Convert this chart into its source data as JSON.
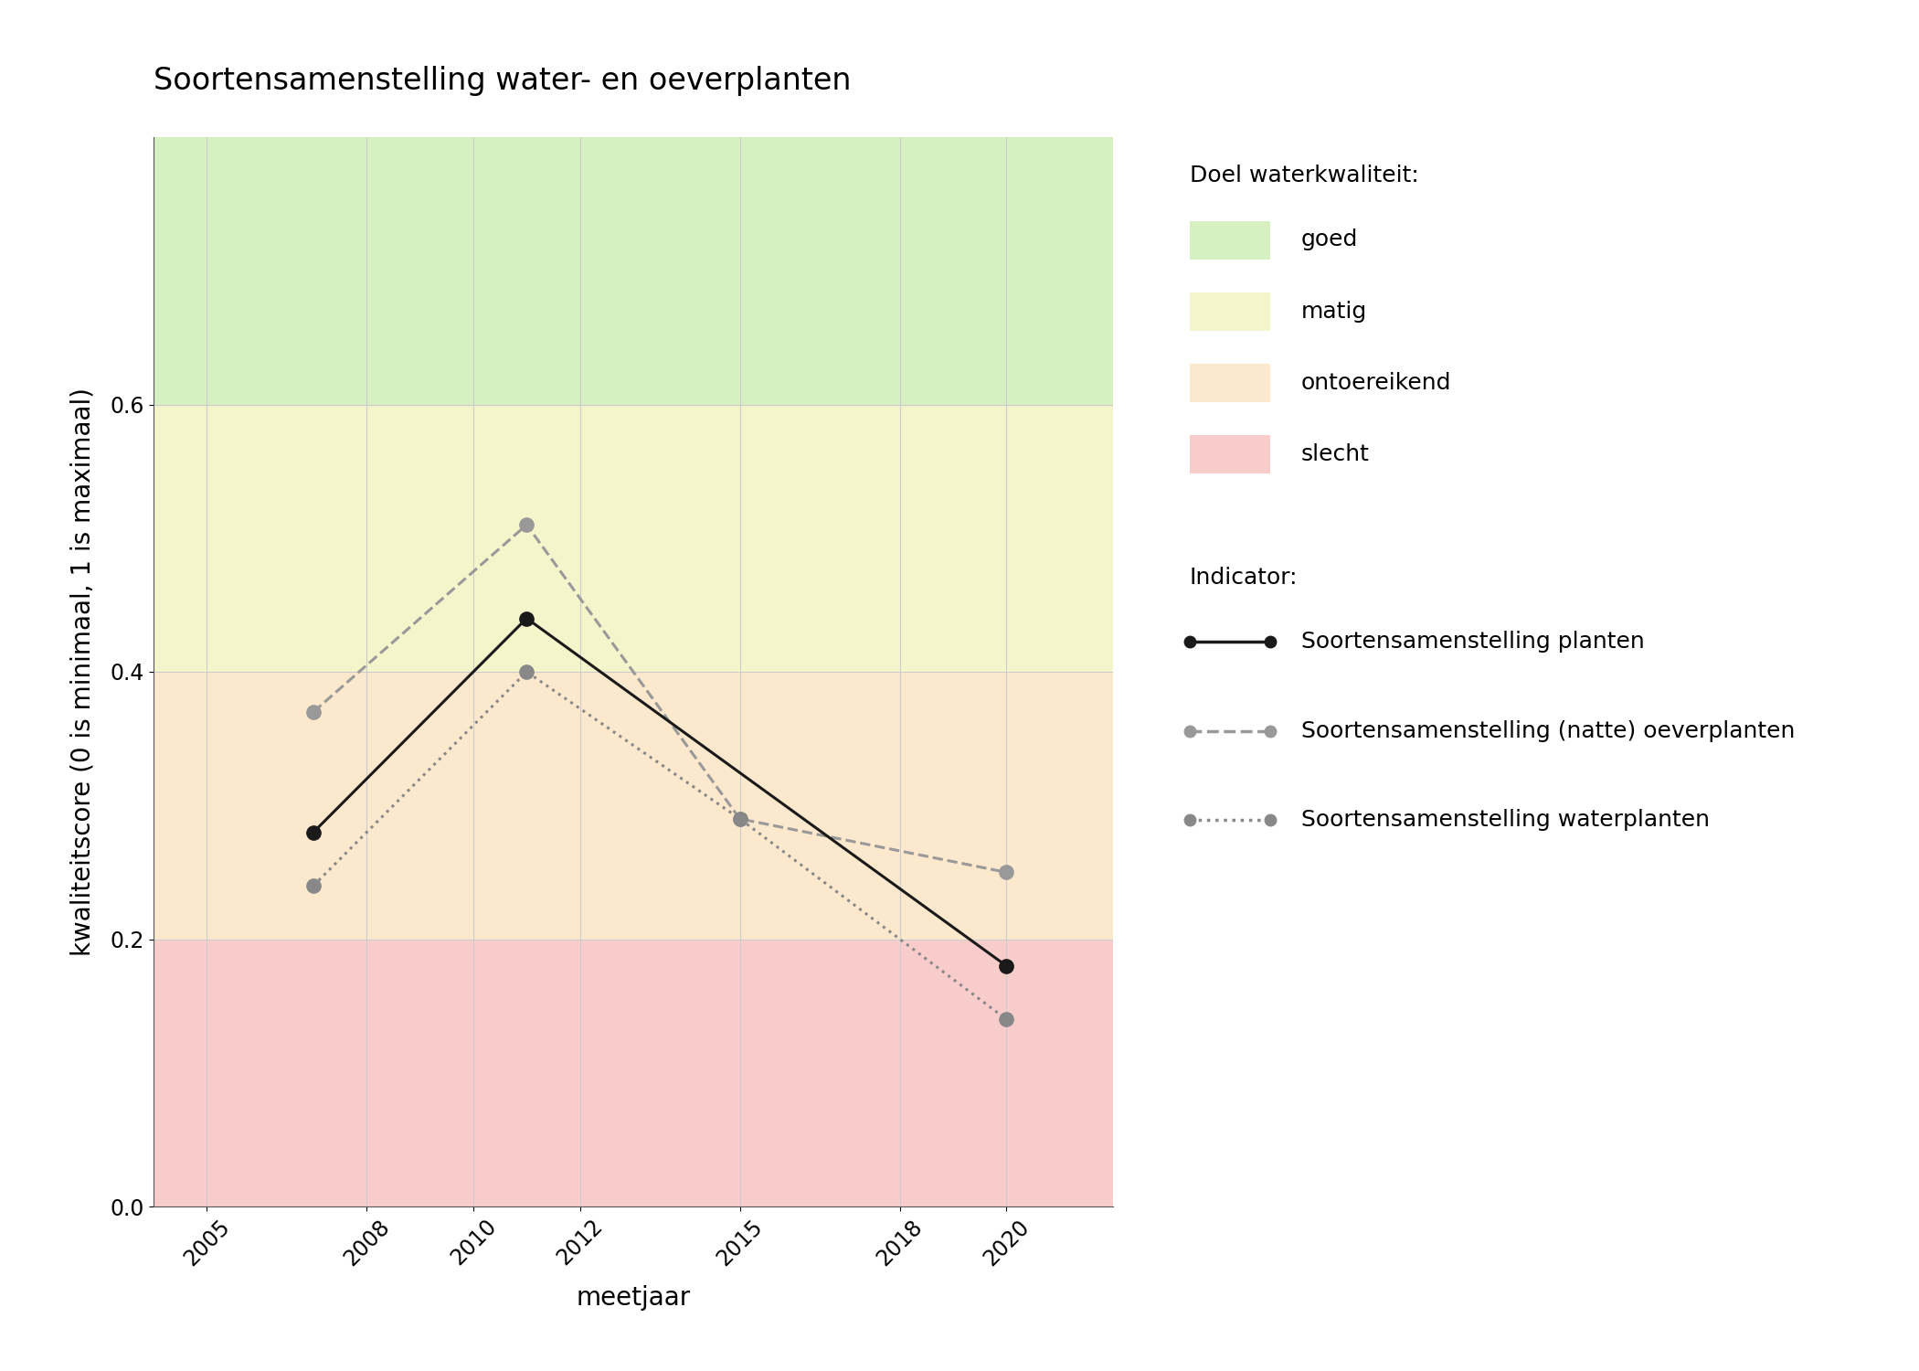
{
  "title": "Soortensamenstelling water- en oeverplanten",
  "xlabel": "meetjaar",
  "ylabel": "kwaliteitscore (0 is minimaal, 1 is maximaal)",
  "xlim": [
    2004,
    2022
  ],
  "ylim": [
    0.0,
    0.8
  ],
  "xticks": [
    2005,
    2008,
    2010,
    2012,
    2015,
    2018,
    2020
  ],
  "yticks": [
    0.0,
    0.2,
    0.4,
    0.6
  ],
  "series": [
    {
      "name": "Soortensamenstelling planten",
      "x": [
        2007,
        2011,
        2020
      ],
      "y": [
        0.28,
        0.44,
        0.18
      ],
      "color": "#1a1a1a",
      "linestyle": "solid",
      "linewidth": 2.2,
      "marker": "o",
      "markersize": 11,
      "zorder": 5
    },
    {
      "name": "Soortensamenstelling (natte) oeverplanten",
      "x": [
        2007,
        2011,
        2015,
        2020
      ],
      "y": [
        0.37,
        0.51,
        0.29,
        0.25
      ],
      "color": "#999999",
      "linestyle": "dashed",
      "linewidth": 2.2,
      "marker": "o",
      "markersize": 11,
      "zorder": 4
    },
    {
      "name": "Soortensamenstelling waterplanten",
      "x": [
        2007,
        2011,
        2015,
        2020
      ],
      "y": [
        0.24,
        0.4,
        0.29,
        0.14
      ],
      "color": "#888888",
      "linestyle": "dotted",
      "linewidth": 2.2,
      "marker": "o",
      "markersize": 11,
      "zorder": 4
    }
  ],
  "legend_title_quality": "Doel waterkwaliteit:",
  "legend_title_indicator": "Indicator:",
  "bg_color": "#ffffff",
  "grid_color": "#cccccc",
  "band_colors": {
    "goed": "#d6f0c2",
    "matig": "#f5f5cc",
    "ontoereikend": "#fce8cc",
    "slecht": "#f9cccc"
  },
  "band_order": [
    {
      "label": "slecht",
      "ymin": 0.0,
      "ymax": 0.2
    },
    {
      "label": "ontoereikend",
      "ymin": 0.2,
      "ymax": 0.4
    },
    {
      "label": "matig",
      "ymin": 0.4,
      "ymax": 0.6
    },
    {
      "label": "goed",
      "ymin": 0.6,
      "ymax": 0.8
    }
  ]
}
